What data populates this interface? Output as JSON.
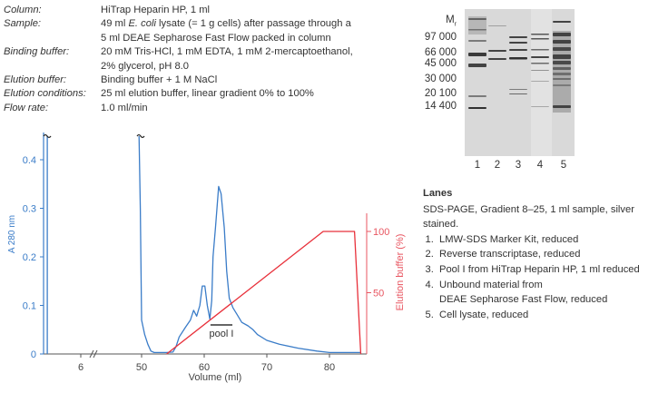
{
  "conditions": [
    {
      "key": "Column:",
      "lines": [
        "HiTrap Heparin HP, 1 ml"
      ]
    },
    {
      "key": "Sample:",
      "lines": [
        "49 ml E. coli lysate (= 1 g cells) after passage through a",
        "5 ml DEAE Sepharose Fast Flow packed in column"
      ]
    },
    {
      "key": "Binding buffer:",
      "lines": [
        "20 mM Tris-HCl, 1 mM EDTA, 1 mM 2-mercaptoethanol,",
        "2% glycerol, pH 8.0"
      ]
    },
    {
      "key": "Elution buffer:",
      "lines": [
        "Binding buffer + 1 M NaCl"
      ]
    },
    {
      "key": "Elution conditions:",
      "lines": [
        "25 ml elution buffer, linear gradient 0% to 100%"
      ]
    },
    {
      "key": "Flow rate:",
      "lines": [
        "1.0 ml/min"
      ]
    }
  ],
  "chart_data": {
    "type": "line",
    "xlabel": "Volume (ml)",
    "ylabel": "A 280 nm",
    "y2label": "Elution buffer (%)",
    "x_ticks": [
      "6",
      "50",
      "60",
      "70",
      "80"
    ],
    "y_ticks": [
      "0",
      "0.1",
      "0.2",
      "0.3",
      "0.4"
    ],
    "y2_ticks": [
      "50",
      "100"
    ],
    "ylim": [
      0,
      0.45
    ],
    "y2lim": [
      0,
      120
    ],
    "axis_break": "between 6 and 50",
    "colors": {
      "absorbance": "#3a7cc8",
      "gradient": "#e8303a",
      "right_axis": "#e85560"
    },
    "series": [
      {
        "id": "absorbance",
        "axis": "left",
        "pre_break": [
          [
            5.1,
            0
          ],
          [
            5.1,
            0.45
          ]
        ],
        "points": [
          [
            49.6,
            0.45
          ],
          [
            49.8,
            0.3
          ],
          [
            50.0,
            0.07
          ],
          [
            50.5,
            0.04
          ],
          [
            51,
            0.02
          ],
          [
            51.5,
            0.006
          ],
          [
            52,
            0.003
          ],
          [
            54,
            0.003
          ],
          [
            55,
            0.004
          ],
          [
            55.5,
            0.015
          ],
          [
            56,
            0.035
          ],
          [
            57,
            0.055
          ],
          [
            57.8,
            0.07
          ],
          [
            58.3,
            0.09
          ],
          [
            58.8,
            0.078
          ],
          [
            59.3,
            0.1
          ],
          [
            59.7,
            0.14
          ],
          [
            60.1,
            0.14
          ],
          [
            60.5,
            0.1
          ],
          [
            60.9,
            0.072
          ],
          [
            61.2,
            0.11
          ],
          [
            61.4,
            0.2
          ],
          [
            61.8,
            0.26
          ],
          [
            62.3,
            0.345
          ],
          [
            62.7,
            0.33
          ],
          [
            63.2,
            0.26
          ],
          [
            63.6,
            0.17
          ],
          [
            64,
            0.115
          ],
          [
            64.6,
            0.095
          ],
          [
            65.3,
            0.08
          ],
          [
            66,
            0.065
          ],
          [
            67,
            0.058
          ],
          [
            67.8,
            0.05
          ],
          [
            68.5,
            0.04
          ],
          [
            70,
            0.028
          ],
          [
            72,
            0.02
          ],
          [
            75,
            0.012
          ],
          [
            78,
            0.006
          ],
          [
            80,
            0.003
          ],
          [
            85,
            0.003
          ]
        ]
      },
      {
        "id": "gradient",
        "axis": "right",
        "points": [
          [
            54,
            0
          ],
          [
            79,
            100
          ],
          [
            84,
            100
          ],
          [
            85,
            0
          ]
        ]
      }
    ],
    "annotations": [
      {
        "label": "pool I",
        "x_range": [
          61,
          64.5
        ]
      }
    ]
  },
  "gel": {
    "mr_label": "Mr",
    "markers": [
      "97 000",
      "66 000",
      "45 000",
      "30 000",
      "20 100",
      "14 400"
    ],
    "lane_numbers": [
      "1",
      "2",
      "3",
      "4",
      "5"
    ]
  },
  "lanes": {
    "title": "Lanes",
    "description": "SDS-PAGE, Gradient 8–25, 1 ml sample, silver stained.",
    "items": [
      [
        "LMW-SDS Marker Kit, reduced"
      ],
      [
        "Reverse transcriptase, reduced"
      ],
      [
        "Pool I from HiTrap Heparin HP, 1 ml reduced"
      ],
      [
        "Unbound material from",
        "DEAE Sepharose Fast Flow, reduced"
      ],
      [
        "Cell lysate, reduced"
      ]
    ]
  }
}
